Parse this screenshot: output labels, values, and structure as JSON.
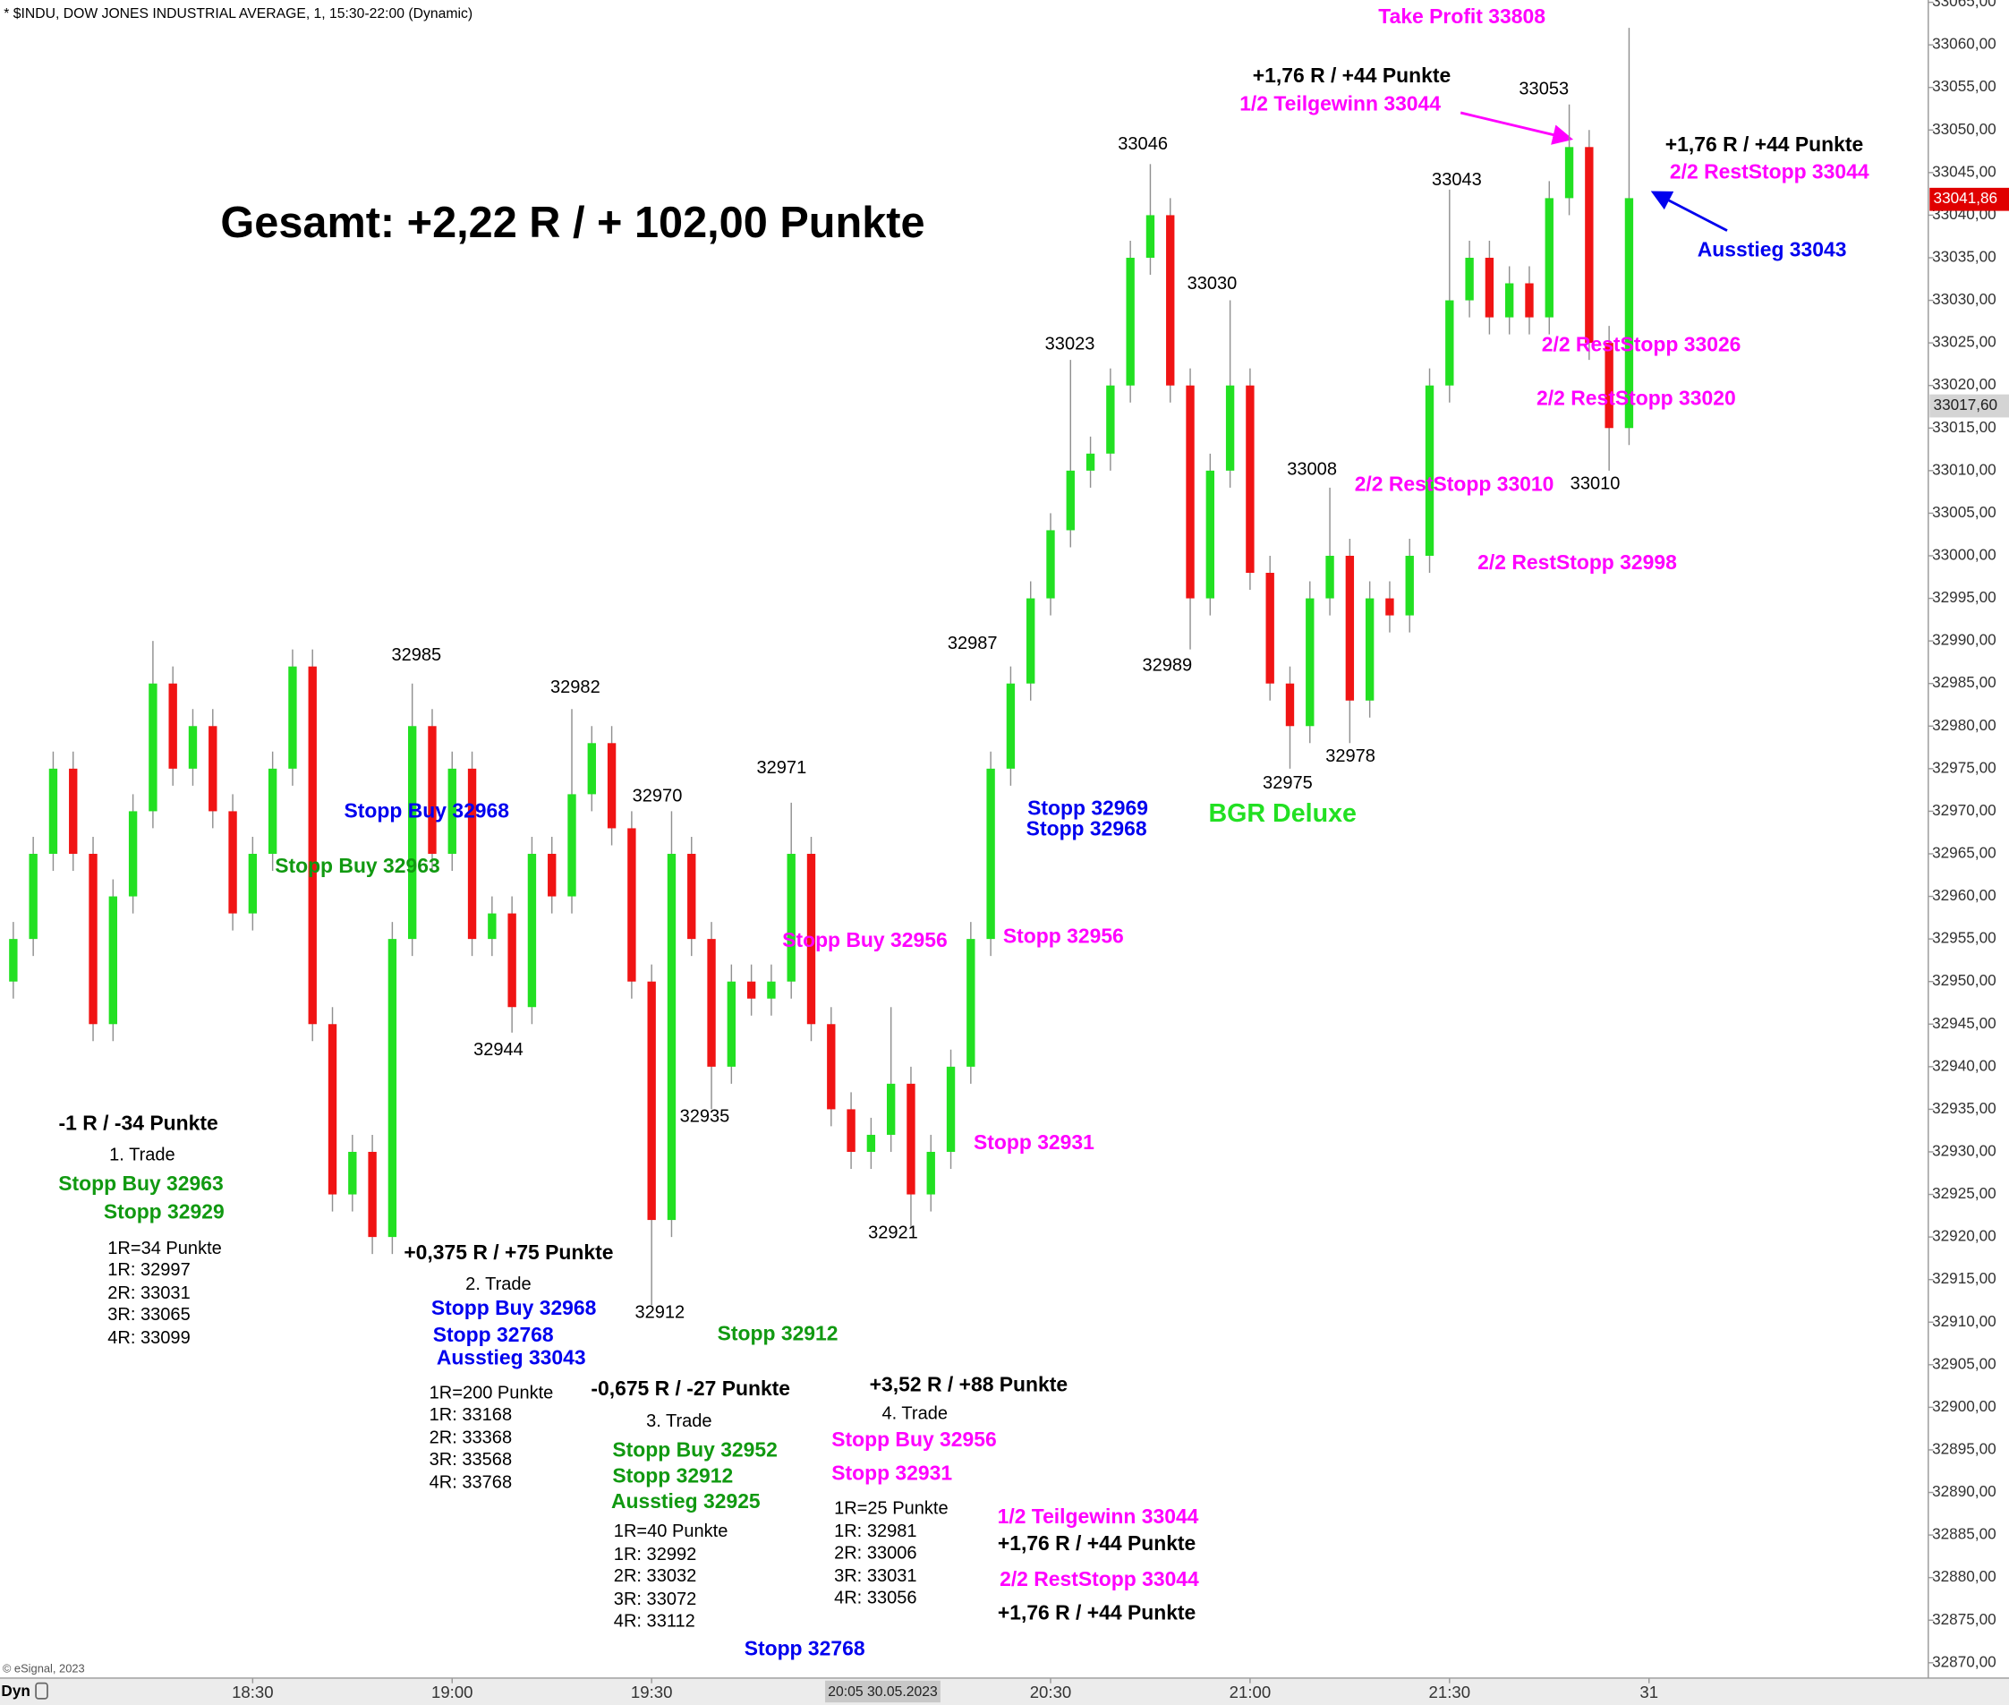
{
  "chart_data": {
    "type": "candlestick",
    "title": "* $INDU, DOW JONES INDUSTRIAL AVERAGE, 1, 15:30-22:00 (Dynamic)",
    "x": [
      "17:54",
      "17:57",
      "18:00",
      "18:03",
      "18:06",
      "18:09",
      "18:12",
      "18:15",
      "18:18",
      "18:21",
      "18:24",
      "18:27",
      "18:30",
      "18:33",
      "18:36",
      "18:39",
      "18:42",
      "18:45",
      "18:48",
      "18:51",
      "18:54",
      "18:57",
      "19:00",
      "19:03",
      "19:06",
      "19:09",
      "19:12",
      "19:15",
      "19:18",
      "19:21",
      "19:24",
      "19:27",
      "19:30",
      "19:33",
      "19:36",
      "19:39",
      "19:42",
      "19:45",
      "19:48",
      "19:51",
      "19:54",
      "19:57",
      "20:00",
      "20:03",
      "20:06",
      "20:09",
      "20:12",
      "20:15",
      "20:18",
      "20:21",
      "20:24",
      "20:27",
      "20:30",
      "20:33",
      "20:36",
      "20:39",
      "20:42",
      "20:45",
      "20:48",
      "20:51",
      "20:54",
      "20:57",
      "21:00",
      "21:03",
      "21:06",
      "21:09",
      "21:12",
      "21:15",
      "21:18",
      "21:21",
      "21:24",
      "21:27",
      "21:30",
      "21:33",
      "21:36",
      "21:39",
      "21:42",
      "21:45",
      "21:48",
      "21:51",
      "21:54",
      "21:57"
    ],
    "open": [
      32950,
      32955,
      32965,
      32975,
      32965,
      32945,
      32960,
      32970,
      32985,
      32975,
      32980,
      32970,
      32958,
      32965,
      32975,
      32987,
      32945,
      32925,
      32930,
      32920,
      32955,
      32980,
      32965,
      32975,
      32955,
      32958,
      32947,
      32965,
      32960,
      32972,
      32978,
      32968,
      32950,
      32922,
      32965,
      32955,
      32940,
      32950,
      32948,
      32950,
      32965,
      32945,
      32935,
      32930,
      32932,
      32938,
      32925,
      32930,
      32940,
      32955,
      32975,
      32985,
      32995,
      33003,
      33010,
      33012,
      33020,
      33035,
      33040,
      33020,
      32995,
      33010,
      33020,
      32998,
      32985,
      32980,
      32995,
      33000,
      32983,
      32995,
      32993,
      33000,
      33020,
      33030,
      33035,
      33028,
      33032,
      33028,
      33042,
      33048,
      33025,
      33015
    ],
    "high": [
      32957,
      32967,
      32977,
      32977,
      32967,
      32962,
      32972,
      32990,
      32987,
      32982,
      32982,
      32972,
      32967,
      32977,
      32989,
      32989,
      32947,
      32932,
      32932,
      32957,
      32985,
      32982,
      32977,
      32977,
      32960,
      32960,
      32967,
      32967,
      32982,
      32980,
      32980,
      32970,
      32952,
      32970,
      32967,
      32957,
      32952,
      32952,
      32952,
      32971,
      32967,
      32947,
      32937,
      32934,
      32947,
      32940,
      32932,
      32942,
      32957,
      32977,
      32987,
      32997,
      33005,
      33023,
      33014,
      33022,
      33037,
      33046,
      33042,
      33022,
      33012,
      33030,
      33022,
      33000,
      32987,
      32997,
      33008,
      33002,
      32997,
      32997,
      33002,
      33022,
      33043,
      33037,
      33037,
      33034,
      33034,
      33044,
      33053,
      33050,
      33027,
      33062
    ],
    "low": [
      32948,
      32953,
      32963,
      32963,
      32943,
      32943,
      32958,
      32968,
      32973,
      32973,
      32968,
      32956,
      32956,
      32963,
      32973,
      32943,
      32923,
      32923,
      32918,
      32918,
      32953,
      32963,
      32963,
      32953,
      32953,
      32944,
      32945,
      32958,
      32958,
      32970,
      32966,
      32948,
      32912,
      32920,
      32953,
      32935,
      32938,
      32946,
      32946,
      32948,
      32943,
      32933,
      32928,
      32928,
      32930,
      32921,
      32923,
      32928,
      32938,
      32953,
      32973,
      32983,
      32993,
      33001,
      33008,
      33010,
      33018,
      33033,
      33018,
      32989,
      32993,
      33008,
      32996,
      32983,
      32975,
      32978,
      32993,
      32978,
      32981,
      32991,
      32991,
      32998,
      33018,
      33028,
      33026,
      33026,
      33026,
      33026,
      33040,
      33023,
      33010,
      33013
    ],
    "close": [
      32955,
      32965,
      32975,
      32965,
      32945,
      32960,
      32970,
      32985,
      32975,
      32980,
      32970,
      32958,
      32965,
      32975,
      32987,
      32945,
      32925,
      32930,
      32920,
      32955,
      32980,
      32965,
      32975,
      32955,
      32958,
      32947,
      32965,
      32960,
      32972,
      32978,
      32968,
      32950,
      32922,
      32965,
      32955,
      32940,
      32950,
      32948,
      32950,
      32965,
      32945,
      32935,
      32930,
      32932,
      32938,
      32925,
      32930,
      32940,
      32955,
      32975,
      32985,
      32995,
      33003,
      33010,
      33012,
      33020,
      33035,
      33040,
      33020,
      32995,
      33010,
      33020,
      32998,
      32985,
      32980,
      32995,
      33000,
      32983,
      32995,
      32993,
      33000,
      33020,
      33030,
      33035,
      33028,
      33032,
      33028,
      33042,
      33048,
      33025,
      33015,
      33042
    ],
    "up_color": "#22e022",
    "down_color": "#f01414",
    "xlim": [
      "17:52",
      "22:42"
    ],
    "xticks": [
      "18:30",
      "19:00",
      "19:30",
      "20:30",
      "21:00",
      "21:30",
      {
        "value": "22:00",
        "label": "31"
      }
    ],
    "ylim": [
      32868.2,
      33065.27
    ],
    "yticks": [
      {
        "value": 33065,
        "label": "33065,00"
      },
      {
        "value": 33060,
        "label": "33060,00"
      },
      {
        "value": 33055,
        "label": "33055,00"
      },
      {
        "value": 33050,
        "label": "33050,00"
      },
      {
        "value": 33045,
        "label": "33045,00"
      },
      {
        "value": 33040,
        "label": "33040,00"
      },
      {
        "value": 33035,
        "label": "33035,00"
      },
      {
        "value": 33030,
        "label": "33030,00"
      },
      {
        "value": 33025,
        "label": "33025,00"
      },
      {
        "value": 33020,
        "label": "33020,00"
      },
      {
        "value": 33015,
        "label": "33015,00"
      },
      {
        "value": 33010,
        "label": "33010,00"
      },
      {
        "value": 33005,
        "label": "33005,00"
      },
      {
        "value": 33000,
        "label": "33000,00"
      },
      {
        "value": 32995,
        "label": "32995,00"
      },
      {
        "value": 32990,
        "label": "32990,00"
      },
      {
        "value": 32985,
        "label": "32985,00"
      },
      {
        "value": 32980,
        "label": "32980,00"
      },
      {
        "value": 32975,
        "label": "32975,00"
      },
      {
        "value": 32970,
        "label": "32970,00"
      },
      {
        "value": 32965,
        "label": "32965,00"
      },
      {
        "value": 32960,
        "label": "32960,00"
      },
      {
        "value": 32955,
        "label": "32955,00"
      },
      {
        "value": 32950,
        "label": "32950,00"
      },
      {
        "value": 32945,
        "label": "32945,00"
      },
      {
        "value": 32940,
        "label": "32940,00"
      },
      {
        "value": 32935,
        "label": "32935,00"
      },
      {
        "value": 32930,
        "label": "32930,00"
      },
      {
        "value": 32925,
        "label": "32925,00"
      },
      {
        "value": 32920,
        "label": "32920,00"
      },
      {
        "value": 32915,
        "label": "32915,00"
      },
      {
        "value": 32910,
        "label": "32910,00"
      },
      {
        "value": 32905,
        "label": "32905,00"
      },
      {
        "value": 32900,
        "label": "32900,00"
      },
      {
        "value": 32895,
        "label": "32895,00"
      },
      {
        "value": 32890,
        "label": "32890,00"
      },
      {
        "value": 32885,
        "label": "32885,00"
      },
      {
        "value": 32880,
        "label": "32880,00"
      },
      {
        "value": 32875,
        "label": "32875,00"
      },
      {
        "value": 32870,
        "label": "32870,00"
      }
    ],
    "grid": false,
    "price_tags": [
      {
        "value": 33041.86,
        "label": "33041,86",
        "color": "#e00000"
      },
      {
        "value": 33017.6,
        "label": "33017,60",
        "color": "#d4d4d4"
      }
    ],
    "crosshair_label": "20:05 30.05.2023",
    "copyright": "© eSignal, 2023",
    "mode_label": "Dyn",
    "price_labels": [
      32985,
      32982,
      32970,
      32971,
      32944,
      32935,
      32912,
      32921,
      32987,
      33023,
      33046,
      33030,
      32989,
      33008,
      32975,
      32978,
      33043,
      33053,
      33010
    ],
    "annotations": [
      {
        "text": "Take Profit 33808",
        "color": "#ff00ff",
        "bold": true
      },
      {
        "text": "+1,76 R / +44 Punkte",
        "color": "#000000",
        "bold": true
      },
      {
        "text": "1/2 Teilgewinn 33044",
        "color": "#ff00ff",
        "bold": true
      },
      {
        "text": "+1,76 R / +44 Punkte",
        "color": "#000000",
        "bold": true
      },
      {
        "text": "2/2 RestStopp 33044",
        "color": "#ff00ff",
        "bold": true
      },
      {
        "text": "Ausstieg 33043",
        "color": "#0000ee",
        "bold": true
      },
      {
        "text": "Gesamt: +2,22 R / + 102,00 Punkte",
        "color": "#000000",
        "bold": true
      },
      {
        "text": "2/2 RestStopp 33026",
        "color": "#ff00ff",
        "bold": true
      },
      {
        "text": "2/2 RestStopp 33020",
        "color": "#ff00ff",
        "bold": true
      },
      {
        "text": "2/2 RestStopp 33010",
        "color": "#ff00ff",
        "bold": true
      },
      {
        "text": "2/2 RestStopp 32998",
        "color": "#ff00ff",
        "bold": true
      },
      {
        "text": "Stopp Buy 32968",
        "color": "#0000ee",
        "bold": true
      },
      {
        "text": "Stopp Buy 32963",
        "color": "#119911",
        "bold": true
      },
      {
        "text": "Stopp 32969",
        "color": "#0000ee",
        "bold": true
      },
      {
        "text": "Stopp 32968",
        "color": "#0000ee",
        "bold": true
      },
      {
        "text": "BGR Deluxe",
        "color": "#22e022",
        "bold": true
      },
      {
        "text": "Stopp Buy 32956",
        "color": "#ff00ff",
        "bold": true
      },
      {
        "text": "Stopp 32956",
        "color": "#ff00ff",
        "bold": true
      },
      {
        "text": "Stopp 32931",
        "color": "#ff00ff",
        "bold": true
      },
      {
        "text": "-1 R / -34 Punkte",
        "color": "#000000",
        "bold": true
      },
      {
        "text": "1. Trade",
        "color": "#000000",
        "bold": false
      },
      {
        "text": "Stopp Buy 32963",
        "color": "#119911",
        "bold": true
      },
      {
        "text": "Stopp 32929",
        "color": "#119911",
        "bold": true
      },
      {
        "text": "1R=34 Punkte",
        "color": "#000000",
        "bold": false
      },
      {
        "text": "1R: 32997",
        "color": "#000000",
        "bold": false
      },
      {
        "text": "2R: 33031",
        "color": "#000000",
        "bold": false
      },
      {
        "text": "3R: 33065",
        "color": "#000000",
        "bold": false
      },
      {
        "text": "4R: 33099",
        "color": "#000000",
        "bold": false
      },
      {
        "text": "+0,375 R / +75 Punkte",
        "color": "#000000",
        "bold": true
      },
      {
        "text": "2. Trade",
        "color": "#000000",
        "bold": false
      },
      {
        "text": "Stopp Buy 32968",
        "color": "#0000ee",
        "bold": true
      },
      {
        "text": "Stopp 32768",
        "color": "#0000ee",
        "bold": true
      },
      {
        "text": "Ausstieg 33043",
        "color": "#0000ee",
        "bold": true
      },
      {
        "text": "1R=200 Punkte",
        "color": "#000000",
        "bold": false
      },
      {
        "text": "1R: 33168",
        "color": "#000000",
        "bold": false
      },
      {
        "text": "2R: 33368",
        "color": "#000000",
        "bold": false
      },
      {
        "text": "3R: 33568",
        "color": "#000000",
        "bold": false
      },
      {
        "text": "4R: 33768",
        "color": "#000000",
        "bold": false
      },
      {
        "text": "-0,675 R / -27 Punkte",
        "color": "#000000",
        "bold": true
      },
      {
        "text": "3. Trade",
        "color": "#000000",
        "bold": false
      },
      {
        "text": "Stopp Buy 32952",
        "color": "#119911",
        "bold": true
      },
      {
        "text": "Stopp 32912",
        "color": "#119911",
        "bold": true
      },
      {
        "text": "Ausstieg 32925",
        "color": "#119911",
        "bold": true
      },
      {
        "text": "1R=40 Punkte",
        "color": "#000000",
        "bold": false
      },
      {
        "text": "1R: 32992",
        "color": "#000000",
        "bold": false
      },
      {
        "text": "2R: 33032",
        "color": "#000000",
        "bold": false
      },
      {
        "text": "3R: 33072",
        "color": "#000000",
        "bold": false
      },
      {
        "text": "4R: 33112",
        "color": "#000000",
        "bold": false
      },
      {
        "text": "Stopp 32768",
        "color": "#0000ee",
        "bold": true
      },
      {
        "text": "Stopp 32912",
        "color": "#119911",
        "bold": true
      },
      {
        "text": "+3,52 R / +88 Punkte",
        "color": "#000000",
        "bold": true
      },
      {
        "text": "4. Trade",
        "color": "#000000",
        "bold": false
      },
      {
        "text": "Stopp Buy 32956",
        "color": "#ff00ff",
        "bold": true
      },
      {
        "text": "Stopp 32931",
        "color": "#ff00ff",
        "bold": true
      },
      {
        "text": "1R=25 Punkte",
        "color": "#000000",
        "bold": false
      },
      {
        "text": "1R: 32981",
        "color": "#000000",
        "bold": false
      },
      {
        "text": "2R: 33006",
        "color": "#000000",
        "bold": false
      },
      {
        "text": "3R: 33031",
        "color": "#000000",
        "bold": false
      },
      {
        "text": "4R: 33056",
        "color": "#000000",
        "bold": false
      },
      {
        "text": "1/2 Teilgewinn 33044",
        "color": "#ff00ff",
        "bold": true
      },
      {
        "text": "+1,76 R / +44 Punkte",
        "color": "#000000",
        "bold": true
      },
      {
        "text": "2/2 RestStopp 33044",
        "color": "#ff00ff",
        "bold": true
      },
      {
        "text": "+1,76 R / +44 Punkte",
        "color": "#000000",
        "bold": true
      }
    ]
  }
}
